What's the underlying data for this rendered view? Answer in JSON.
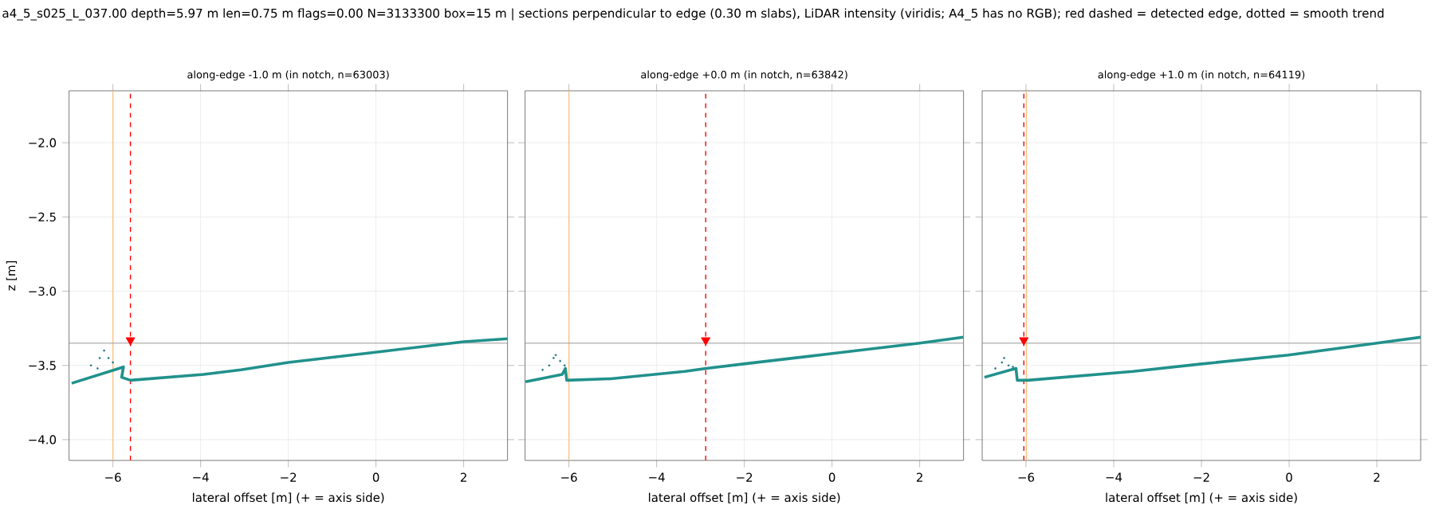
{
  "chart_data": [
    {
      "type": "line",
      "title": "along-edge -1.0 m  (in notch, n=63003)",
      "xlabel": "lateral offset [m]  (+ = axis side)",
      "ylabel": "z [m]",
      "annotations": [
        "a4_5_s025_L_037.00  depth=5.97 m  len=0.75 m  flags=0.00  N=3133300  box=15 m   |   sections perpendicular to edge (0.30 m slabs), LiDAR intensity (viridis; A4_5 has no RGB);  red dashed = detected edge, dotted = smooth trend"
      ],
      "xlim": [
        -7,
        3
      ],
      "ylim": [
        -4.14,
        -1.65
      ],
      "xticks": [
        {
          "value": -6,
          "label": "−6"
        },
        {
          "value": -4,
          "label": "−4"
        },
        {
          "value": -2,
          "label": "−2"
        },
        {
          "value": 0,
          "label": "0"
        },
        {
          "value": 2,
          "label": "2"
        }
      ],
      "yticks": [
        {
          "value": -4.0,
          "label": "−4.0"
        },
        {
          "value": -3.5,
          "label": "−3.5"
        },
        {
          "value": -3.0,
          "label": "−3.0"
        },
        {
          "value": -2.5,
          "label": "−2.5"
        },
        {
          "value": -2.0,
          "label": "−2.0"
        }
      ],
      "grid": true,
      "series": [
        {
          "color": "#21918c",
          "x": [
            -6.94,
            -5.86,
            -5.76,
            -5.8,
            -5.6,
            -3.93,
            -3.08,
            -2.0,
            0.02,
            2.0,
            3.0
          ],
          "values": [
            -3.62,
            -3.52,
            -3.51,
            -3.58,
            -3.6,
            -3.56,
            -3.53,
            -3.48,
            -3.41,
            -3.34,
            -3.32
          ]
        },
        {
          "type": "scatter",
          "marker": "circle",
          "color": "#2a788e",
          "x": [
            -6.5,
            -6.35,
            -6.3,
            -6.2,
            -6.1,
            -6.0
          ],
          "values": [
            -3.5,
            -3.52,
            -3.45,
            -3.4,
            -3.45,
            -3.48
          ]
        },
        {
          "type": "scatter",
          "marker": "triangle",
          "color": "#ff0000",
          "x": [
            -5.6
          ],
          "values": [
            -3.33
          ]
        }
      ],
      "ref_lines": [
        {
          "axis": "x",
          "value": -5.6,
          "color": "#ff0000",
          "line_style": "dashed"
        },
        {
          "axis": "x",
          "value": -6.0,
          "color": "#f5c48a",
          "line_style": "solid"
        },
        {
          "axis": "y",
          "value": -3.35,
          "color": "#999999",
          "line_style": "solid"
        }
      ]
    },
    {
      "type": "line",
      "title": "along-edge +0.0 m  (in notch, n=63842)",
      "xlabel": "lateral offset [m]  (+ = axis side)",
      "tick_labels": "x",
      "xlim": [
        -7,
        3
      ],
      "ylim": [
        -4.14,
        -1.65
      ],
      "xticks": [
        {
          "value": -6,
          "label": "−6"
        },
        {
          "value": -4,
          "label": "−4"
        },
        {
          "value": -2,
          "label": "−2"
        },
        {
          "value": 0,
          "label": "0"
        },
        {
          "value": 2,
          "label": "2"
        }
      ],
      "yticks": [
        {
          "value": -4.0,
          "label": null
        },
        {
          "value": -3.5,
          "label": null
        },
        {
          "value": -3.0,
          "label": null
        },
        {
          "value": -2.5,
          "label": null
        },
        {
          "value": -2.0,
          "label": null
        }
      ],
      "grid": true,
      "series": [
        {
          "color": "#21918c",
          "x": [
            -6.99,
            -6.15,
            -6.08,
            -6.05,
            -5.05,
            -3.36,
            -2.87,
            -2.02,
            0.01,
            2.0,
            3.0
          ],
          "values": [
            -3.61,
            -3.56,
            -3.52,
            -3.6,
            -3.59,
            -3.54,
            -3.52,
            -3.49,
            -3.42,
            -3.35,
            -3.31
          ]
        },
        {
          "type": "scatter",
          "marker": "circle",
          "color": "#2a788e",
          "x": [
            -6.6,
            -6.45,
            -6.35,
            -6.3,
            -6.2,
            -6.1
          ],
          "values": [
            -3.53,
            -3.5,
            -3.45,
            -3.43,
            -3.47,
            -3.5
          ]
        },
        {
          "type": "scatter",
          "marker": "triangle",
          "color": "#ff0000",
          "x": [
            -2.88
          ],
          "values": [
            -3.33
          ]
        }
      ],
      "ref_lines": [
        {
          "axis": "x",
          "value": -2.88,
          "color": "#ff0000",
          "line_style": "dashed"
        },
        {
          "axis": "x",
          "value": -6.0,
          "color": "#f5c48a",
          "line_style": "solid"
        },
        {
          "axis": "y",
          "value": -3.35,
          "color": "#999999",
          "line_style": "solid"
        }
      ]
    },
    {
      "type": "line",
      "title": "along-edge +1.0 m  (in notch, n=64119)",
      "xlabel": "lateral offset [m]  (+ = axis side)",
      "tick_labels": "x",
      "xlim": [
        -7,
        3
      ],
      "ylim": [
        -4.14,
        -1.65
      ],
      "xticks": [
        {
          "value": -6,
          "label": "−6"
        },
        {
          "value": -4,
          "label": "−4"
        },
        {
          "value": -2,
          "label": "−2"
        },
        {
          "value": 0,
          "label": "0"
        },
        {
          "value": 2,
          "label": "2"
        }
      ],
      "yticks": [
        {
          "value": -4.0,
          "label": null
        },
        {
          "value": -3.5,
          "label": null
        },
        {
          "value": -3.0,
          "label": null
        },
        {
          "value": -2.5,
          "label": null
        },
        {
          "value": -2.0,
          "label": null
        }
      ],
      "grid": true,
      "series": [
        {
          "color": "#21918c",
          "x": [
            -6.95,
            -6.23,
            -6.2,
            -5.96,
            -3.56,
            -2.0,
            -0.02,
            2.0,
            3.0
          ],
          "values": [
            -3.58,
            -3.52,
            -3.6,
            -3.6,
            -3.54,
            -3.49,
            -3.43,
            -3.35,
            -3.31
          ]
        },
        {
          "type": "scatter",
          "marker": "circle",
          "color": "#2a788e",
          "x": [
            -6.7,
            -6.55,
            -6.5,
            -6.4,
            -6.3
          ],
          "values": [
            -3.52,
            -3.48,
            -3.45,
            -3.5,
            -3.51
          ]
        },
        {
          "type": "scatter",
          "marker": "triangle",
          "color": "#ff0000",
          "x": [
            -6.05
          ],
          "values": [
            -3.33
          ]
        }
      ],
      "ref_lines": [
        {
          "axis": "x",
          "value": -6.05,
          "color": "#ff0000",
          "line_style": "dashed"
        },
        {
          "axis": "x",
          "value": -5.99,
          "color": "#f5c48a",
          "line_style": "solid"
        },
        {
          "axis": "y",
          "value": -3.35,
          "color": "#999999",
          "line_style": "solid"
        }
      ]
    }
  ]
}
